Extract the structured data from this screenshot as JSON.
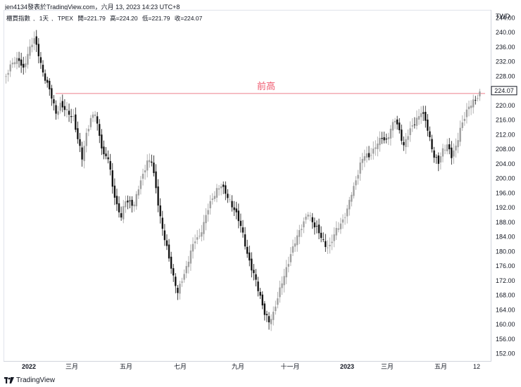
{
  "header": {
    "publisher_line": "jen4134發表於TradingView.com，六月 13, 2023 14:23 UTC+8",
    "symbol": "櫃買指數",
    "interval": "1天",
    "exchange": "TPEX",
    "open_label": "開=221.79",
    "high_label": "高=224.20",
    "low_label": "低=221.79",
    "close_label": "收=224.07"
  },
  "footer": {
    "brand": "TradingView"
  },
  "colors": {
    "up": "#9e9e9e",
    "down": "#111111",
    "level_line": "#f2a3ab",
    "level_text": "#ef5a6f"
  },
  "chart_data": {
    "type": "candlestick",
    "currency": "TWD",
    "ylim": [
      150,
      246
    ],
    "y_ticks": [
      "244.00",
      "240.00",
      "236.00",
      "232.00",
      "228.00",
      "224.00",
      "220.00",
      "216.00",
      "212.00",
      "208.00",
      "204.00",
      "200.00",
      "196.00",
      "192.00",
      "188.00",
      "184.00",
      "180.00",
      "176.00",
      "172.00",
      "168.00",
      "164.00",
      "160.00",
      "156.00",
      "152.00"
    ],
    "x_ticks": [
      "2022",
      "三月",
      "五月",
      "七月",
      "九月",
      "十一月",
      "2023",
      "三月",
      "五月",
      "12"
    ],
    "last_price": "224.07",
    "annotations": [
      {
        "type": "horizontal_line",
        "value": 223.3,
        "label": "前高"
      }
    ],
    "path": [
      [
        0,
        228
      ],
      [
        3,
        231
      ],
      [
        6,
        232
      ],
      [
        8,
        230
      ],
      [
        10,
        235
      ],
      [
        12,
        238
      ],
      [
        13,
        239
      ],
      [
        15,
        234
      ],
      [
        17,
        228
      ],
      [
        19,
        225
      ],
      [
        21,
        222
      ],
      [
        23,
        218
      ],
      [
        25,
        221
      ],
      [
        27,
        220
      ],
      [
        29,
        218
      ],
      [
        31,
        216
      ],
      [
        33,
        210
      ],
      [
        35,
        205
      ],
      [
        37,
        212
      ],
      [
        39,
        217
      ],
      [
        41,
        219
      ],
      [
        43,
        212
      ],
      [
        45,
        206
      ],
      [
        47,
        205
      ],
      [
        49,
        197
      ],
      [
        51,
        192
      ],
      [
        53,
        190
      ],
      [
        55,
        195
      ],
      [
        57,
        194
      ],
      [
        59,
        193
      ],
      [
        61,
        197
      ],
      [
        63,
        200
      ],
      [
        65,
        204
      ],
      [
        67,
        205
      ],
      [
        69,
        198
      ],
      [
        71,
        190
      ],
      [
        73,
        184
      ],
      [
        75,
        178
      ],
      [
        77,
        172
      ],
      [
        79,
        168
      ],
      [
        81,
        172
      ],
      [
        83,
        176
      ],
      [
        85,
        181
      ],
      [
        87,
        184
      ],
      [
        89,
        184
      ],
      [
        91,
        187
      ],
      [
        93,
        191
      ],
      [
        95,
        194
      ],
      [
        97,
        197
      ],
      [
        99,
        199
      ],
      [
        101,
        197
      ],
      [
        103,
        194
      ],
      [
        105,
        191
      ],
      [
        107,
        188
      ],
      [
        109,
        184
      ],
      [
        111,
        179
      ],
      [
        113,
        176
      ],
      [
        115,
        173
      ],
      [
        117,
        168
      ],
      [
        119,
        163
      ],
      [
        121,
        160
      ],
      [
        123,
        162
      ],
      [
        125,
        167
      ],
      [
        127,
        172
      ],
      [
        129,
        176
      ],
      [
        131,
        180
      ],
      [
        133,
        183
      ],
      [
        135,
        185
      ],
      [
        137,
        187
      ],
      [
        139,
        190
      ],
      [
        141,
        188
      ],
      [
        143,
        187
      ],
      [
        145,
        185
      ],
      [
        147,
        182
      ],
      [
        149,
        181
      ],
      [
        151,
        184
      ],
      [
        153,
        186
      ],
      [
        155,
        188
      ],
      [
        157,
        192
      ],
      [
        159,
        197
      ],
      [
        161,
        200
      ],
      [
        163,
        204
      ],
      [
        165,
        206
      ],
      [
        167,
        205
      ],
      [
        169,
        207
      ],
      [
        171,
        210
      ],
      [
        173,
        212
      ],
      [
        175,
        211
      ],
      [
        177,
        214
      ],
      [
        179,
        216
      ],
      [
        181,
        212
      ],
      [
        183,
        208
      ],
      [
        185,
        212
      ],
      [
        187,
        215
      ],
      [
        189,
        217
      ],
      [
        191,
        219
      ],
      [
        193,
        216
      ],
      [
        195,
        210
      ],
      [
        197,
        205
      ],
      [
        199,
        204
      ],
      [
        201,
        208
      ],
      [
        203,
        210
      ],
      [
        205,
        207
      ],
      [
        207,
        209
      ],
      [
        209,
        213
      ],
      [
        211,
        216
      ],
      [
        213,
        219
      ],
      [
        215,
        221
      ],
      [
        217,
        223
      ],
      [
        218,
        224.07
      ]
    ]
  }
}
